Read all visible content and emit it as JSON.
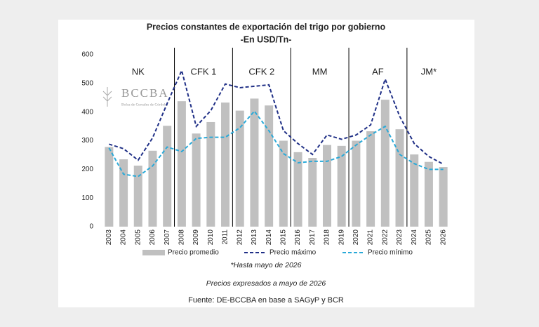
{
  "chart_data": {
    "type": "bar",
    "title": "Precios constantes de exportación del trigo por gobierno",
    "subtitle": "-En USD/Tn-",
    "categories": [
      "2003",
      "2004",
      "2005",
      "2006",
      "2007",
      "2008",
      "2009",
      "2010",
      "2011",
      "2012",
      "2013",
      "2014",
      "2015",
      "2016",
      "2017",
      "2018",
      "2019",
      "2020",
      "2021",
      "2022",
      "2023",
      "2024",
      "2025",
      "2026"
    ],
    "series": [
      {
        "name": "Precio promedio",
        "type": "bar",
        "color": "#c0c0c0",
        "values": [
          278,
          235,
          213,
          265,
          352,
          438,
          325,
          365,
          433,
          405,
          447,
          423,
          300,
          260,
          240,
          285,
          282,
          300,
          333,
          443,
          340,
          252,
          226,
          208
        ]
      },
      {
        "name": "Precio máximo",
        "type": "line",
        "dashed": true,
        "color": "#1f2f86",
        "values": [
          288,
          272,
          232,
          310,
          430,
          545,
          350,
          405,
          498,
          485,
          490,
          495,
          335,
          290,
          252,
          320,
          305,
          320,
          355,
          515,
          385,
          290,
          245,
          218
        ]
      },
      {
        "name": "Precio mínimo",
        "type": "line",
        "dashed": true,
        "color": "#29a9d8",
        "values": [
          275,
          183,
          175,
          212,
          278,
          262,
          308,
          312,
          312,
          345,
          403,
          335,
          255,
          223,
          228,
          228,
          245,
          285,
          320,
          350,
          252,
          220,
          200,
          200
        ]
      }
    ],
    "ylim": [
      0,
      600
    ],
    "yticks": [
      0,
      100,
      200,
      300,
      400,
      500,
      600
    ],
    "governments": [
      {
        "label": "NK",
        "from": "2003",
        "to": "2007"
      },
      {
        "label": "CFK 1",
        "from": "2008",
        "to": "2011"
      },
      {
        "label": "CFK 2",
        "from": "2012",
        "to": "2015"
      },
      {
        "label": "MM",
        "from": "2016",
        "to": "2019"
      },
      {
        "label": "AF",
        "from": "2020",
        "to": "2023"
      },
      {
        "label": "JM*",
        "from": "2024",
        "to": "2026"
      }
    ],
    "watermark": {
      "title": "BCCBA",
      "subtitle": "Bolsa de Cereales de Córdoba"
    },
    "note": "*Hasta mayo de 2026",
    "prices_note": "Precios expresados a mayo de 2026",
    "source": "Fuente: DE-BCCBA en base a SAGyP y BCR"
  }
}
